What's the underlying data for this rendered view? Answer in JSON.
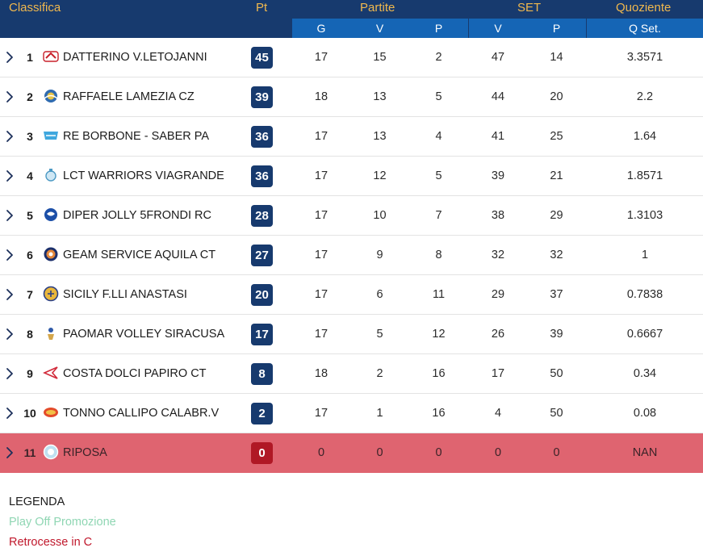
{
  "colors": {
    "header_bg": "#173a6e",
    "subheader_bg": "#1565b5",
    "header_text": "#f0b84e",
    "relegation_row": "#df6470",
    "badge_bg": "#173a6e",
    "badge_relegation_bg": "#b01825",
    "legend_playoff": "#8fd6b3",
    "legend_relegation": "#c0182c"
  },
  "header": {
    "classifica": "Classifica",
    "pt": "Pt",
    "partite": "Partite",
    "set": "SET",
    "quoziente": "Quoziente",
    "g": "G",
    "partite_v": "V",
    "partite_p": "P",
    "set_v": "V",
    "set_p": "P",
    "qset": "Q Set."
  },
  "rows": [
    {
      "pos": "1",
      "team": "DATTERINO V.LETOJANNI",
      "logo": "letojanni-logo-icon",
      "pt": "45",
      "g": "17",
      "v": "15",
      "p": "2",
      "sv": "47",
      "sp": "14",
      "q": "3.3571"
    },
    {
      "pos": "2",
      "team": "RAFFAELE LAMEZIA CZ",
      "logo": "lamezia-logo-icon",
      "pt": "39",
      "g": "18",
      "v": "13",
      "p": "5",
      "sv": "44",
      "sp": "20",
      "q": "2.2"
    },
    {
      "pos": "3",
      "team": "RE BORBONE - SABER PA",
      "logo": "saber-logo-icon",
      "pt": "36",
      "g": "17",
      "v": "13",
      "p": "4",
      "sv": "41",
      "sp": "25",
      "q": "1.64"
    },
    {
      "pos": "4",
      "team": "LCT WARRIORS VIAGRANDE",
      "logo": "warriors-logo-icon",
      "pt": "36",
      "g": "17",
      "v": "12",
      "p": "5",
      "sv": "39",
      "sp": "21",
      "q": "1.8571"
    },
    {
      "pos": "5",
      "team": "DIPER JOLLY 5FRONDI RC",
      "logo": "jolly-logo-icon",
      "pt": "28",
      "g": "17",
      "v": "10",
      "p": "7",
      "sv": "38",
      "sp": "29",
      "q": "1.3103"
    },
    {
      "pos": "6",
      "team": "GEAM SERVICE AQUILA CT",
      "logo": "aquila-logo-icon",
      "pt": "27",
      "g": "17",
      "v": "9",
      "p": "8",
      "sv": "32",
      "sp": "32",
      "q": "1"
    },
    {
      "pos": "7",
      "team": "SICILY F.LLI ANASTASI",
      "logo": "sicily-logo-icon",
      "pt": "20",
      "g": "17",
      "v": "6",
      "p": "11",
      "sv": "29",
      "sp": "37",
      "q": "0.7838"
    },
    {
      "pos": "8",
      "team": "PAOMAR VOLLEY SIRACUSA",
      "logo": "paomar-logo-icon",
      "pt": "17",
      "g": "17",
      "v": "5",
      "p": "12",
      "sv": "26",
      "sp": "39",
      "q": "0.6667"
    },
    {
      "pos": "9",
      "team": "COSTA DOLCI PAPIRO CT",
      "logo": "papiro-logo-icon",
      "pt": "8",
      "g": "18",
      "v": "2",
      "p": "16",
      "sv": "17",
      "sp": "50",
      "q": "0.34"
    },
    {
      "pos": "10",
      "team": "TONNO CALLIPO CALABR.V",
      "logo": "callipo-logo-icon",
      "pt": "2",
      "g": "17",
      "v": "1",
      "p": "16",
      "sv": "4",
      "sp": "50",
      "q": "0.08"
    },
    {
      "pos": "11",
      "team": "RIPOSA",
      "logo": "riposa-logo-icon",
      "pt": "0",
      "g": "0",
      "v": "0",
      "p": "0",
      "sv": "0",
      "sp": "0",
      "q": "NAN",
      "status": "relegated"
    }
  ],
  "legend": {
    "title": "LEGENDA",
    "playoff": "Play Off Promozione",
    "relegation": "Retrocesse in C"
  }
}
